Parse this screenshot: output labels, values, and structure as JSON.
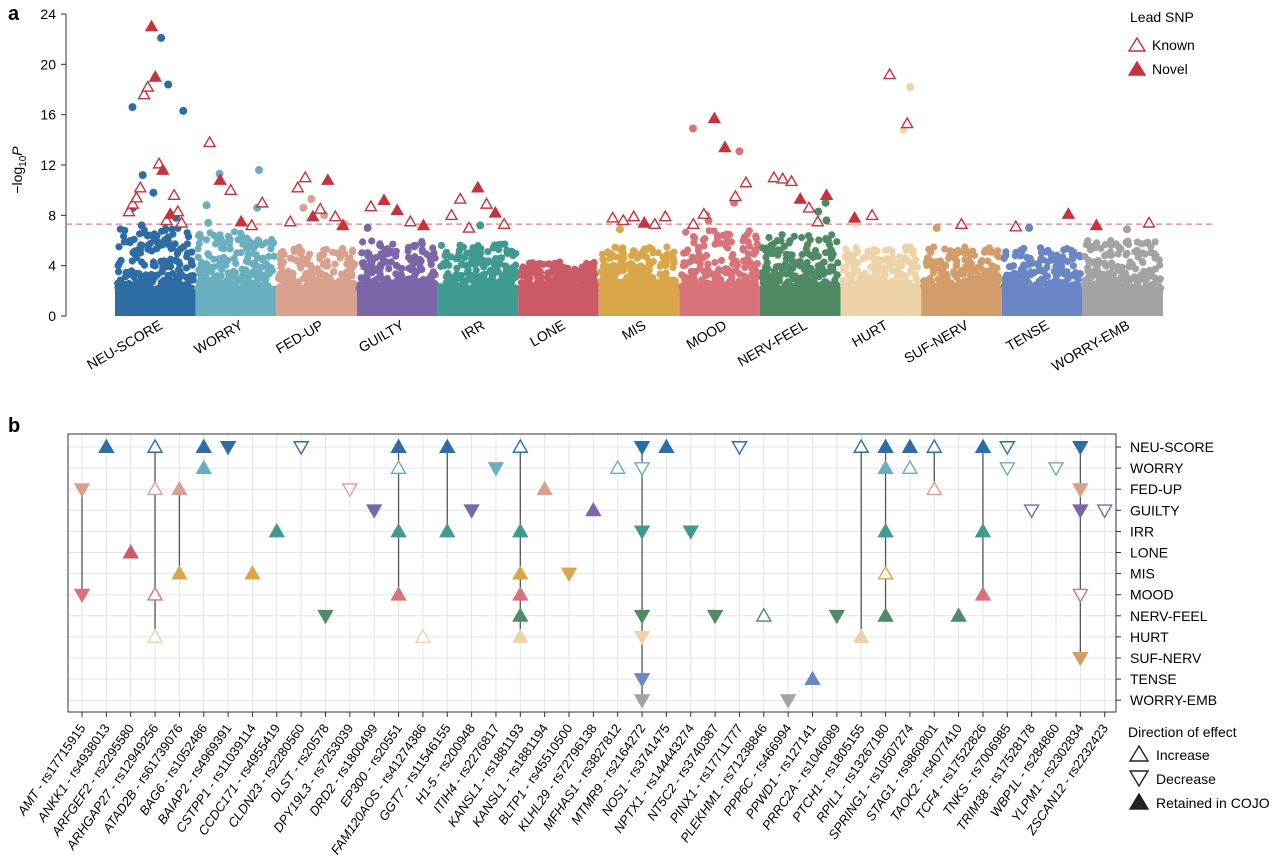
{
  "panel_a": {
    "label": "a",
    "ylabel_prefix": "−log",
    "ylabel_sub": "10",
    "ylabel_suffix": "P",
    "chart_data": {
      "type": "scatter",
      "title": "",
      "ylim": [
        0,
        24
      ],
      "yticks": [
        0,
        4,
        8,
        12,
        16,
        20,
        24
      ],
      "threshold": 7.3,
      "categories": [
        "NEU-SCORE",
        "WORRY",
        "FED-UP",
        "GUILTY",
        "IRR",
        "LONE",
        "MIS",
        "MOOD",
        "NERV-FEEL",
        "HURT",
        "SUF-NERV",
        "TENSE",
        "WORRY-EMB"
      ],
      "colors": [
        "#2e6da4",
        "#6aafbf",
        "#d9a08e",
        "#7b67a8",
        "#3f9a8f",
        "#cc5a66",
        "#d9a64a",
        "#d9737a",
        "#4f8a65",
        "#efd3a8",
        "#d29d68",
        "#6a86c4",
        "#a3a3a3"
      ],
      "cluster_max": [
        7.0,
        6.8,
        5.5,
        6.0,
        5.8,
        4.3,
        5.5,
        6.8,
        6.5,
        5.5,
        5.5,
        5.5,
        6.0
      ],
      "lead_snps": [
        [
          [
            8.3,
            "k"
          ],
          [
            8.9,
            "k"
          ],
          [
            9.4,
            "k"
          ],
          [
            10.2,
            "k"
          ],
          [
            17.6,
            "k"
          ],
          [
            18.2,
            "k"
          ],
          [
            23.0,
            "n"
          ],
          [
            19.0,
            "n"
          ],
          [
            12.1,
            "k"
          ],
          [
            11.6,
            "n"
          ],
          [
            7.6,
            "k"
          ],
          [
            8.1,
            "n"
          ],
          [
            9.6,
            "k"
          ],
          [
            8.3,
            "k"
          ],
          [
            7.4,
            "k"
          ]
        ],
        [
          [
            13.8,
            "k"
          ],
          [
            10.8,
            "n"
          ],
          [
            10.0,
            "k"
          ],
          [
            7.5,
            "n"
          ],
          [
            7.2,
            "k"
          ],
          [
            9.0,
            "k"
          ]
        ],
        [
          [
            7.5,
            "k"
          ],
          [
            10.2,
            "k"
          ],
          [
            11.0,
            "k"
          ],
          [
            7.9,
            "n"
          ],
          [
            8.5,
            "k"
          ],
          [
            10.8,
            "n"
          ],
          [
            7.9,
            "k"
          ],
          [
            7.2,
            "n"
          ]
        ],
        [
          [
            8.7,
            "k"
          ],
          [
            9.2,
            "n"
          ],
          [
            8.4,
            "n"
          ],
          [
            7.5,
            "k"
          ],
          [
            7.2,
            "n"
          ]
        ],
        [
          [
            8.0,
            "k"
          ],
          [
            9.3,
            "k"
          ],
          [
            7.0,
            "k"
          ],
          [
            10.2,
            "n"
          ],
          [
            8.9,
            "k"
          ],
          [
            8.2,
            "n"
          ],
          [
            7.3,
            "k"
          ]
        ],
        [],
        [
          [
            7.8,
            "k"
          ],
          [
            7.6,
            "k"
          ],
          [
            7.9,
            "k"
          ],
          [
            7.4,
            "n"
          ],
          [
            7.3,
            "k"
          ],
          [
            7.9,
            "k"
          ]
        ],
        [
          [
            7.3,
            "k"
          ],
          [
            8.1,
            "k"
          ],
          [
            15.7,
            "n"
          ],
          [
            13.4,
            "n"
          ],
          [
            9.5,
            "k"
          ],
          [
            10.6,
            "k"
          ]
        ],
        [
          [
            11.0,
            "k"
          ],
          [
            10.9,
            "k"
          ],
          [
            10.7,
            "k"
          ],
          [
            9.3,
            "n"
          ],
          [
            8.6,
            "k"
          ],
          [
            7.5,
            "k"
          ],
          [
            9.6,
            "n"
          ]
        ],
        [
          [
            7.8,
            "n"
          ],
          [
            8.0,
            "k"
          ],
          [
            19.2,
            "k"
          ],
          [
            15.3,
            "k"
          ]
        ],
        [
          [
            7.3,
            "k"
          ]
        ],
        [
          [
            7.1,
            "k"
          ],
          [
            8.1,
            "n"
          ]
        ],
        [
          [
            7.2,
            "n"
          ],
          [
            7.4,
            "k"
          ]
        ]
      ],
      "extra_points": [
        [
          [
            16.3
          ],
          [
            16.6
          ],
          [
            22.1
          ],
          [
            18.4
          ],
          [
            11.2
          ],
          [
            9.8
          ],
          [
            8.6
          ],
          [
            7.8
          ],
          [
            7.2
          ]
        ],
        [
          [
            11.6
          ],
          [
            11.3
          ],
          [
            8.6
          ],
          [
            8.8
          ],
          [
            7.4
          ]
        ],
        [
          [
            9.3
          ],
          [
            8.6
          ],
          [
            8.0
          ],
          [
            7.3
          ]
        ],
        [
          [
            7.0
          ]
        ],
        [
          [
            7.2
          ]
        ],
        [],
        [
          [
            6.9
          ]
        ],
        [
          [
            14.9
          ],
          [
            13.1
          ],
          [
            9.0
          ],
          [
            8.0
          ],
          [
            7.6
          ]
        ],
        [
          [
            9.0
          ],
          [
            8.3
          ],
          [
            7.6
          ]
        ],
        [
          [
            18.2
          ],
          [
            14.8
          ],
          [
            7.4
          ]
        ],
        [
          [
            7.0
          ]
        ],
        [
          [
            7.0
          ]
        ],
        [
          [
            6.9
          ]
        ]
      ]
    },
    "legend": {
      "title": "Lead SNP",
      "known": "Known",
      "novel": "Novel"
    }
  },
  "panel_b": {
    "label": "b",
    "chart_data": {
      "type": "scatter",
      "rows": [
        "NEU-SCORE",
        "WORRY",
        "FED-UP",
        "GUILTY",
        "IRR",
        "LONE",
        "MIS",
        "MOOD",
        "NERV-FEEL",
        "HURT",
        "SUF-NERV",
        "TENSE",
        "WORRY-EMB"
      ],
      "genes": [
        "AMT - rs17715915",
        "ANKK1 - rs4938013",
        "ARFGEF2 - rs2295580",
        "ARHGAP27 - rs12949256",
        "ATAD2B - rs61739076",
        "BAG6 - rs1052486",
        "BAIAP2 - rs4969391",
        "CSTPP1 - rs11039114",
        "CCDC171 - rs4955419",
        "CLDN23 - rs2280560",
        "DLST - rs20578",
        "DPY19L3 - rs7253039",
        "DRD2 - rs1800499",
        "EP300 - rs20551",
        "FAM120AOS - rs41274386",
        "GGT7 - rs11546155",
        "H1-5 - rs200948",
        "ITIH4 - rs2276817",
        "KANSL1 - rs1881193",
        "KANSL1 - rs1881194",
        "BLTP1 - rs45510500",
        "KLHL29 - rs72796138",
        "MFHAS1 - rs3827812",
        "MTMR9 - rs2164272",
        "NOS1 - rs3741475",
        "NPTX1 - rs144443274",
        "NT5C2 - rs3740387",
        "PINX1 - rs17711777",
        "PLEKHM1 - rs71238846",
        "PPP6C - rs466994",
        "PPWD1 - rs127141",
        "PRRC2A - rs1046089",
        "PTCH1 - rs1805155",
        "RPIL1 - rs13267180",
        "SPRING1 - rs10507274",
        "STAG1 - rs9860801",
        "TAOK2 - rs4077410",
        "TCF4 - rs17522826",
        "TNKS - rs7006985",
        "TRIM38 - rs17528178",
        "WBP1L - rs284860",
        "YLPM1 - rs2302834",
        "ZSCAN12 - rs2232423"
      ],
      "markers": [
        {
          "g": 0,
          "r": 2,
          "d": "dec",
          "f": true
        },
        {
          "g": 0,
          "r": 7,
          "d": "dec",
          "f": true
        },
        {
          "g": 1,
          "r": 0,
          "d": "inc",
          "f": true
        },
        {
          "g": 2,
          "r": 5,
          "d": "inc",
          "f": true
        },
        {
          "g": 3,
          "r": 0,
          "d": "inc",
          "f": false
        },
        {
          "g": 3,
          "r": 2,
          "d": "inc",
          "f": false
        },
        {
          "g": 3,
          "r": 7,
          "d": "inc",
          "f": false
        },
        {
          "g": 3,
          "r": 9,
          "d": "inc",
          "f": false
        },
        {
          "g": 4,
          "r": 2,
          "d": "inc",
          "f": true
        },
        {
          "g": 4,
          "r": 6,
          "d": "inc",
          "f": true
        },
        {
          "g": 5,
          "r": 0,
          "d": "inc",
          "f": true
        },
        {
          "g": 5,
          "r": 1,
          "d": "inc",
          "f": true
        },
        {
          "g": 6,
          "r": 0,
          "d": "dec",
          "f": true
        },
        {
          "g": 7,
          "r": 6,
          "d": "inc",
          "f": true
        },
        {
          "g": 8,
          "r": 4,
          "d": "inc",
          "f": true
        },
        {
          "g": 9,
          "r": 0,
          "d": "dec",
          "f": false
        },
        {
          "g": 10,
          "r": 8,
          "d": "dec",
          "f": true
        },
        {
          "g": 11,
          "r": 2,
          "d": "dec",
          "f": false
        },
        {
          "g": 12,
          "r": 3,
          "d": "dec",
          "f": true
        },
        {
          "g": 13,
          "r": 0,
          "d": "inc",
          "f": true
        },
        {
          "g": 13,
          "r": 1,
          "d": "inc",
          "f": false
        },
        {
          "g": 13,
          "r": 4,
          "d": "inc",
          "f": true
        },
        {
          "g": 13,
          "r": 7,
          "d": "inc",
          "f": true
        },
        {
          "g": 14,
          "r": 9,
          "d": "inc",
          "f": false
        },
        {
          "g": 15,
          "r": 0,
          "d": "inc",
          "f": true
        },
        {
          "g": 15,
          "r": 4,
          "d": "inc",
          "f": true
        },
        {
          "g": 16,
          "r": 3,
          "d": "dec",
          "f": true
        },
        {
          "g": 17,
          "r": 1,
          "d": "dec",
          "f": true
        },
        {
          "g": 18,
          "r": 0,
          "d": "inc",
          "f": false
        },
        {
          "g": 18,
          "r": 4,
          "d": "inc",
          "f": true
        },
        {
          "g": 18,
          "r": 6,
          "d": "inc",
          "f": true
        },
        {
          "g": 18,
          "r": 7,
          "d": "inc",
          "f": true
        },
        {
          "g": 18,
          "r": 8,
          "d": "inc",
          "f": true
        },
        {
          "g": 18,
          "r": 9,
          "d": "inc",
          "f": true
        },
        {
          "g": 19,
          "r": 2,
          "d": "inc",
          "f": true
        },
        {
          "g": 20,
          "r": 6,
          "d": "dec",
          "f": true
        },
        {
          "g": 21,
          "r": 3,
          "d": "inc",
          "f": true
        },
        {
          "g": 22,
          "r": 1,
          "d": "inc",
          "f": false
        },
        {
          "g": 23,
          "r": 0,
          "d": "dec",
          "f": true
        },
        {
          "g": 23,
          "r": 1,
          "d": "dec",
          "f": false
        },
        {
          "g": 23,
          "r": 4,
          "d": "dec",
          "f": true
        },
        {
          "g": 23,
          "r": 8,
          "d": "dec",
          "f": true
        },
        {
          "g": 23,
          "r": 9,
          "d": "dec",
          "f": true
        },
        {
          "g": 23,
          "r": 11,
          "d": "dec",
          "f": true
        },
        {
          "g": 23,
          "r": 12,
          "d": "dec",
          "f": true
        },
        {
          "g": 24,
          "r": 0,
          "d": "inc",
          "f": true
        },
        {
          "g": 25,
          "r": 4,
          "d": "dec",
          "f": true
        },
        {
          "g": 26,
          "r": 8,
          "d": "dec",
          "f": true
        },
        {
          "g": 27,
          "r": 0,
          "d": "dec",
          "f": false
        },
        {
          "g": 28,
          "r": 8,
          "d": "inc",
          "f": false
        },
        {
          "g": 29,
          "r": 12,
          "d": "dec",
          "f": true
        },
        {
          "g": 30,
          "r": 11,
          "d": "inc",
          "f": true
        },
        {
          "g": 31,
          "r": 8,
          "d": "dec",
          "f": true
        },
        {
          "g": 32,
          "r": 0,
          "d": "inc",
          "f": false
        },
        {
          "g": 32,
          "r": 9,
          "d": "inc",
          "f": true
        },
        {
          "g": 33,
          "r": 0,
          "d": "inc",
          "f": true
        },
        {
          "g": 33,
          "r": 1,
          "d": "inc",
          "f": true
        },
        {
          "g": 33,
          "r": 4,
          "d": "inc",
          "f": true
        },
        {
          "g": 33,
          "r": 6,
          "d": "inc",
          "f": false
        },
        {
          "g": 33,
          "r": 8,
          "d": "inc",
          "f": true
        },
        {
          "g": 34,
          "r": 0,
          "d": "inc",
          "f": true
        },
        {
          "g": 34,
          "r": 1,
          "d": "inc",
          "f": false
        },
        {
          "g": 35,
          "r": 0,
          "d": "inc",
          "f": false
        },
        {
          "g": 35,
          "r": 2,
          "d": "inc",
          "f": false
        },
        {
          "g": 36,
          "r": 8,
          "d": "inc",
          "f": true
        },
        {
          "g": 37,
          "r": 0,
          "d": "inc",
          "f": true
        },
        {
          "g": 37,
          "r": 4,
          "d": "inc",
          "f": true
        },
        {
          "g": 37,
          "r": 7,
          "d": "inc",
          "f": true
        },
        {
          "g": 38,
          "r": 0,
          "d": "dec",
          "f": false
        },
        {
          "g": 38,
          "r": 1,
          "d": "dec",
          "f": false
        },
        {
          "g": 39,
          "r": 3,
          "d": "dec",
          "f": false
        },
        {
          "g": 40,
          "r": 1,
          "d": "dec",
          "f": false
        },
        {
          "g": 41,
          "r": 0,
          "d": "dec",
          "f": true
        },
        {
          "g": 41,
          "r": 2,
          "d": "dec",
          "f": true
        },
        {
          "g": 41,
          "r": 3,
          "d": "dec",
          "f": true
        },
        {
          "g": 41,
          "r": 7,
          "d": "dec",
          "f": false
        },
        {
          "g": 41,
          "r": 10,
          "d": "dec",
          "f": true
        },
        {
          "g": 42,
          "r": 3,
          "d": "dec",
          "f": false
        }
      ],
      "links": [
        [
          0,
          2,
          7
        ],
        [
          3,
          0,
          9
        ],
        [
          4,
          2,
          6
        ],
        [
          13,
          0,
          7
        ],
        [
          15,
          0,
          4
        ],
        [
          18,
          0,
          9
        ],
        [
          23,
          0,
          12
        ],
        [
          32,
          0,
          9
        ],
        [
          33,
          0,
          8
        ],
        [
          35,
          0,
          2
        ],
        [
          37,
          0,
          7
        ],
        [
          41,
          0,
          10
        ]
      ]
    },
    "legend": {
      "title": "Direction of effect",
      "increase": "Increase",
      "decrease": "Decrease",
      "retained": "Retained in COJO"
    }
  }
}
